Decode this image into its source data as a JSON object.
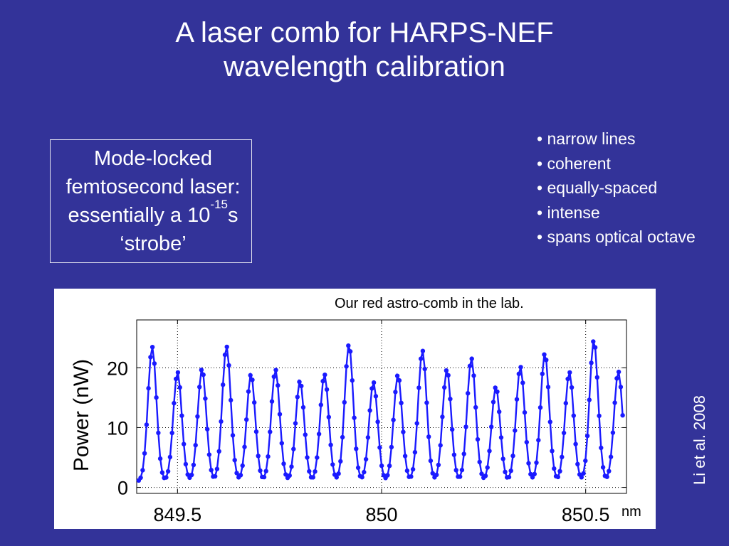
{
  "slide": {
    "title_line1": "A laser comb for HARPS-NEF",
    "title_line2": "wavelength calibration",
    "box": {
      "line1": "Mode-locked",
      "line2": "femtosecond laser:",
      "line3_pre": "essentially a 10",
      "line3_sup": "-15",
      "line3_post": "s",
      "line4": "‘strobe’"
    },
    "bullets": [
      "• narrow lines",
      "• coherent",
      "• equally-spaced",
      "• intense",
      "• spans optical octave"
    ],
    "citation": "Li et al. 2008",
    "figure": {
      "caption": "Our red astro-comb in the lab.",
      "unit": "nm"
    }
  },
  "chart_data": {
    "type": "line",
    "title": "",
    "xlabel": "",
    "ylabel": "Power (nW)",
    "xlim": [
      849.4,
      850.6
    ],
    "ylim": [
      -1,
      28
    ],
    "xticks": [
      "849.5",
      "850",
      "850.5"
    ],
    "xtick_values": [
      849.5,
      850.0,
      850.5
    ],
    "yticks": [
      "0",
      "10",
      "20"
    ],
    "ytick_values": [
      0,
      10,
      20
    ],
    "grid": true,
    "series_color": "#1a1aff",
    "marker": "filled-circle",
    "peaks": {
      "x": [
        849.438,
        849.5,
        849.56,
        849.62,
        849.68,
        849.74,
        849.8,
        849.86,
        849.92,
        849.98,
        850.04,
        850.1,
        850.16,
        850.22,
        850.28,
        850.34,
        850.4,
        850.46,
        850.52,
        850.58
      ],
      "y": [
        23.5,
        19.3,
        19.8,
        23.6,
        18.9,
        19.7,
        17.8,
        18.9,
        23.9,
        17.6,
        18.8,
        22.9,
        19.7,
        21.6,
        16.8,
        20.2,
        22.4,
        19.3,
        24.6,
        19.4
      ]
    },
    "baseline": 1.0
  }
}
